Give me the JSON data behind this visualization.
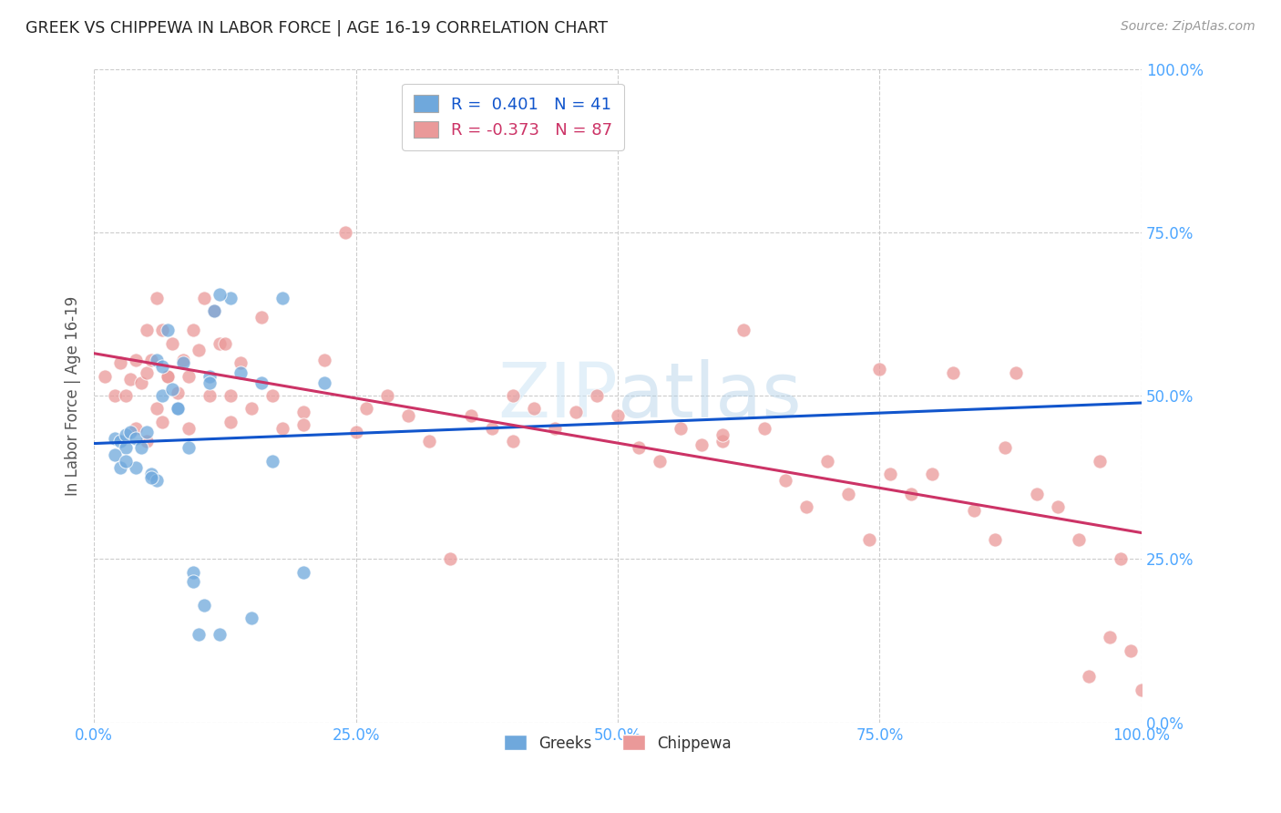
{
  "title": "GREEK VS CHIPPEWA IN LABOR FORCE | AGE 16-19 CORRELATION CHART",
  "source": "Source: ZipAtlas.com",
  "ylabel": "In Labor Force | Age 16-19",
  "xlim": [
    0,
    1.0
  ],
  "ylim": [
    0,
    1.0
  ],
  "xticks": [
    0.0,
    0.25,
    0.5,
    0.75,
    1.0
  ],
  "yticks": [
    0.0,
    0.25,
    0.5,
    0.75,
    1.0
  ],
  "xticklabels": [
    "0.0%",
    "25.0%",
    "50.0%",
    "75.0%",
    "100.0%"
  ],
  "yticklabels": [
    "0.0%",
    "25.0%",
    "50.0%",
    "75.0%",
    "100.0%"
  ],
  "greek_color": "#6fa8dc",
  "chippewa_color": "#ea9999",
  "greek_line_color": "#1155cc",
  "chippewa_line_color": "#cc3366",
  "greek_R": 0.401,
  "greek_N": 41,
  "chippewa_R": -0.373,
  "chippewa_N": 87,
  "background_color": "#ffffff",
  "tick_color": "#4da6ff",
  "greek_points_x": [
    0.02,
    0.025,
    0.03,
    0.03,
    0.035,
    0.04,
    0.04,
    0.045,
    0.05,
    0.055,
    0.06,
    0.06,
    0.065,
    0.07,
    0.075,
    0.08,
    0.085,
    0.09,
    0.095,
    0.1,
    0.105,
    0.11,
    0.115,
    0.12,
    0.13,
    0.14,
    0.15,
    0.16,
    0.17,
    0.18,
    0.2,
    0.22,
    0.02,
    0.025,
    0.03,
    0.055,
    0.065,
    0.08,
    0.095,
    0.11,
    0.12
  ],
  "greek_points_y": [
    0.435,
    0.43,
    0.44,
    0.42,
    0.445,
    0.435,
    0.39,
    0.42,
    0.445,
    0.38,
    0.37,
    0.555,
    0.5,
    0.6,
    0.51,
    0.48,
    0.55,
    0.42,
    0.23,
    0.135,
    0.18,
    0.53,
    0.63,
    0.135,
    0.65,
    0.535,
    0.16,
    0.52,
    0.4,
    0.65,
    0.23,
    0.52,
    0.41,
    0.39,
    0.4,
    0.375,
    0.545,
    0.48,
    0.215,
    0.52,
    0.655
  ],
  "chippewa_points_x": [
    0.01,
    0.02,
    0.025,
    0.03,
    0.035,
    0.04,
    0.045,
    0.05,
    0.05,
    0.055,
    0.06,
    0.06,
    0.065,
    0.07,
    0.075,
    0.08,
    0.085,
    0.09,
    0.095,
    0.1,
    0.105,
    0.11,
    0.115,
    0.12,
    0.125,
    0.13,
    0.14,
    0.15,
    0.16,
    0.17,
    0.18,
    0.2,
    0.22,
    0.24,
    0.26,
    0.28,
    0.3,
    0.32,
    0.34,
    0.36,
    0.38,
    0.4,
    0.42,
    0.44,
    0.46,
    0.48,
    0.5,
    0.52,
    0.54,
    0.56,
    0.58,
    0.6,
    0.62,
    0.64,
    0.66,
    0.68,
    0.7,
    0.72,
    0.74,
    0.76,
    0.78,
    0.8,
    0.82,
    0.84,
    0.86,
    0.88,
    0.9,
    0.92,
    0.94,
    0.96,
    0.98,
    1.0,
    0.05,
    0.065,
    0.07,
    0.09,
    0.13,
    0.2,
    0.25,
    0.4,
    0.6,
    0.75,
    0.87,
    0.95,
    0.97,
    0.99,
    0.04
  ],
  "chippewa_points_y": [
    0.53,
    0.5,
    0.55,
    0.5,
    0.525,
    0.555,
    0.52,
    0.535,
    0.6,
    0.555,
    0.65,
    0.48,
    0.6,
    0.53,
    0.58,
    0.505,
    0.555,
    0.53,
    0.6,
    0.57,
    0.65,
    0.5,
    0.63,
    0.58,
    0.58,
    0.5,
    0.55,
    0.48,
    0.62,
    0.5,
    0.45,
    0.475,
    0.555,
    0.75,
    0.48,
    0.5,
    0.47,
    0.43,
    0.25,
    0.47,
    0.45,
    0.5,
    0.48,
    0.45,
    0.475,
    0.5,
    0.47,
    0.42,
    0.4,
    0.45,
    0.425,
    0.43,
    0.6,
    0.45,
    0.37,
    0.33,
    0.4,
    0.35,
    0.28,
    0.38,
    0.35,
    0.38,
    0.535,
    0.325,
    0.28,
    0.535,
    0.35,
    0.33,
    0.28,
    0.4,
    0.25,
    0.05,
    0.43,
    0.46,
    0.53,
    0.45,
    0.46,
    0.455,
    0.445,
    0.43,
    0.44,
    0.54,
    0.42,
    0.07,
    0.13,
    0.11,
    0.45
  ]
}
